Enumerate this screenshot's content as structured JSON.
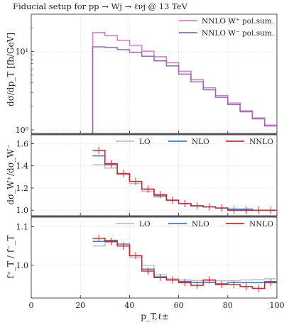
{
  "chart_data": [
    {
      "type": "line",
      "title": "Fiducial setup for pp → Wj → ℓνj @ 13 TeV",
      "ylabel": "dσ/dp_T [fb/GeV]",
      "yscale": "log",
      "ylim": [
        0.9,
        30
      ],
      "yticks": [
        1,
        10
      ],
      "yticklabels": [
        "10⁰",
        "10¹"
      ],
      "x_edges": [
        25,
        30,
        35,
        40,
        45,
        50,
        55,
        60,
        65,
        70,
        75,
        80,
        85,
        90,
        95,
        100
      ],
      "legend": "top-right",
      "series": [
        {
          "name": "NNLO W⁺ pol.sum.",
          "color": "#e377c2",
          "values": [
            17.5,
            16.0,
            13.9,
            12.0,
            10.1,
            8.6,
            7.2,
            5.6,
            4.4,
            3.45,
            2.75,
            2.2,
            1.75,
            1.42,
            1.15
          ]
        },
        {
          "name": "NNLO W⁻ pol.sum.",
          "color": "#9467bd",
          "values": [
            11.5,
            11.3,
            10.6,
            9.8,
            8.7,
            7.6,
            6.55,
            5.15,
            4.1,
            3.25,
            2.6,
            2.1,
            1.7,
            1.38,
            1.12
          ]
        }
      ]
    },
    {
      "type": "line",
      "ylabel": "dσ_W⁺/dσ_W⁻",
      "ylim": [
        0.95,
        1.68
      ],
      "yticks": [
        1.0,
        1.2,
        1.4,
        1.6
      ],
      "yticklabels": [
        "1.0",
        "1.2",
        "1.4",
        "1.6"
      ],
      "x_edges": [
        25,
        30,
        35,
        40,
        45,
        50,
        55,
        60,
        65,
        70,
        75,
        80,
        85,
        90,
        95,
        100
      ],
      "legend": "top",
      "series": [
        {
          "name": "LO",
          "color": "#c0c0c0",
          "values": [
            1.41,
            1.38,
            1.32,
            1.24,
            1.17,
            1.12,
            1.09,
            1.06,
            1.04,
            1.03,
            1.02,
            1.01,
            1.0,
            1.0,
            1.0
          ]
        },
        {
          "name": "NLO",
          "color": "#3a7bd5",
          "values": [
            1.49,
            1.41,
            1.33,
            1.26,
            1.19,
            1.13,
            1.09,
            1.06,
            1.04,
            1.03,
            1.02,
            1.01,
            1.01,
            1.0,
            1.0
          ]
        },
        {
          "name": "NNLO",
          "color": "#d62728",
          "values": [
            1.54,
            1.42,
            1.33,
            1.26,
            1.19,
            1.14,
            1.09,
            1.06,
            1.04,
            1.03,
            1.02,
            1.0,
            1.0,
            1.0,
            1.0
          ]
        }
      ]
    },
    {
      "type": "line",
      "ylabel": "f⁺_T / f⁻_T",
      "xlabel": "p_T,ℓ±",
      "xlim": [
        0,
        100
      ],
      "xticks": [
        0,
        20,
        40,
        60,
        80,
        100
      ],
      "ylim": [
        0.915,
        1.125
      ],
      "yticks": [
        1.0,
        1.1
      ],
      "yticklabels": [
        "1.0",
        "1.1"
      ],
      "x_edges": [
        25,
        30,
        35,
        40,
        45,
        50,
        55,
        60,
        65,
        70,
        75,
        80,
        85,
        90,
        95,
        100
      ],
      "legend": "top",
      "series": [
        {
          "name": "LO",
          "color": "#c0c0c0",
          "values": [
            1.05,
            1.06,
            1.05,
            1.02,
            1.0,
            0.975,
            0.965,
            0.962,
            0.96,
            0.96,
            0.96,
            0.96,
            0.962,
            0.963,
            0.965
          ]
        },
        {
          "name": "NLO",
          "color": "#3a7bd5",
          "values": [
            1.062,
            1.065,
            1.055,
            1.025,
            0.99,
            0.97,
            0.962,
            0.958,
            0.955,
            0.955,
            0.952,
            0.955,
            0.955,
            0.955,
            0.958
          ]
        },
        {
          "name": "NNLO",
          "color": "#d62728",
          "values": [
            1.07,
            1.062,
            1.05,
            1.025,
            0.985,
            0.968,
            0.962,
            0.955,
            0.948,
            0.962,
            0.95,
            0.95,
            0.945,
            0.94,
            0.955
          ]
        }
      ]
    }
  ]
}
